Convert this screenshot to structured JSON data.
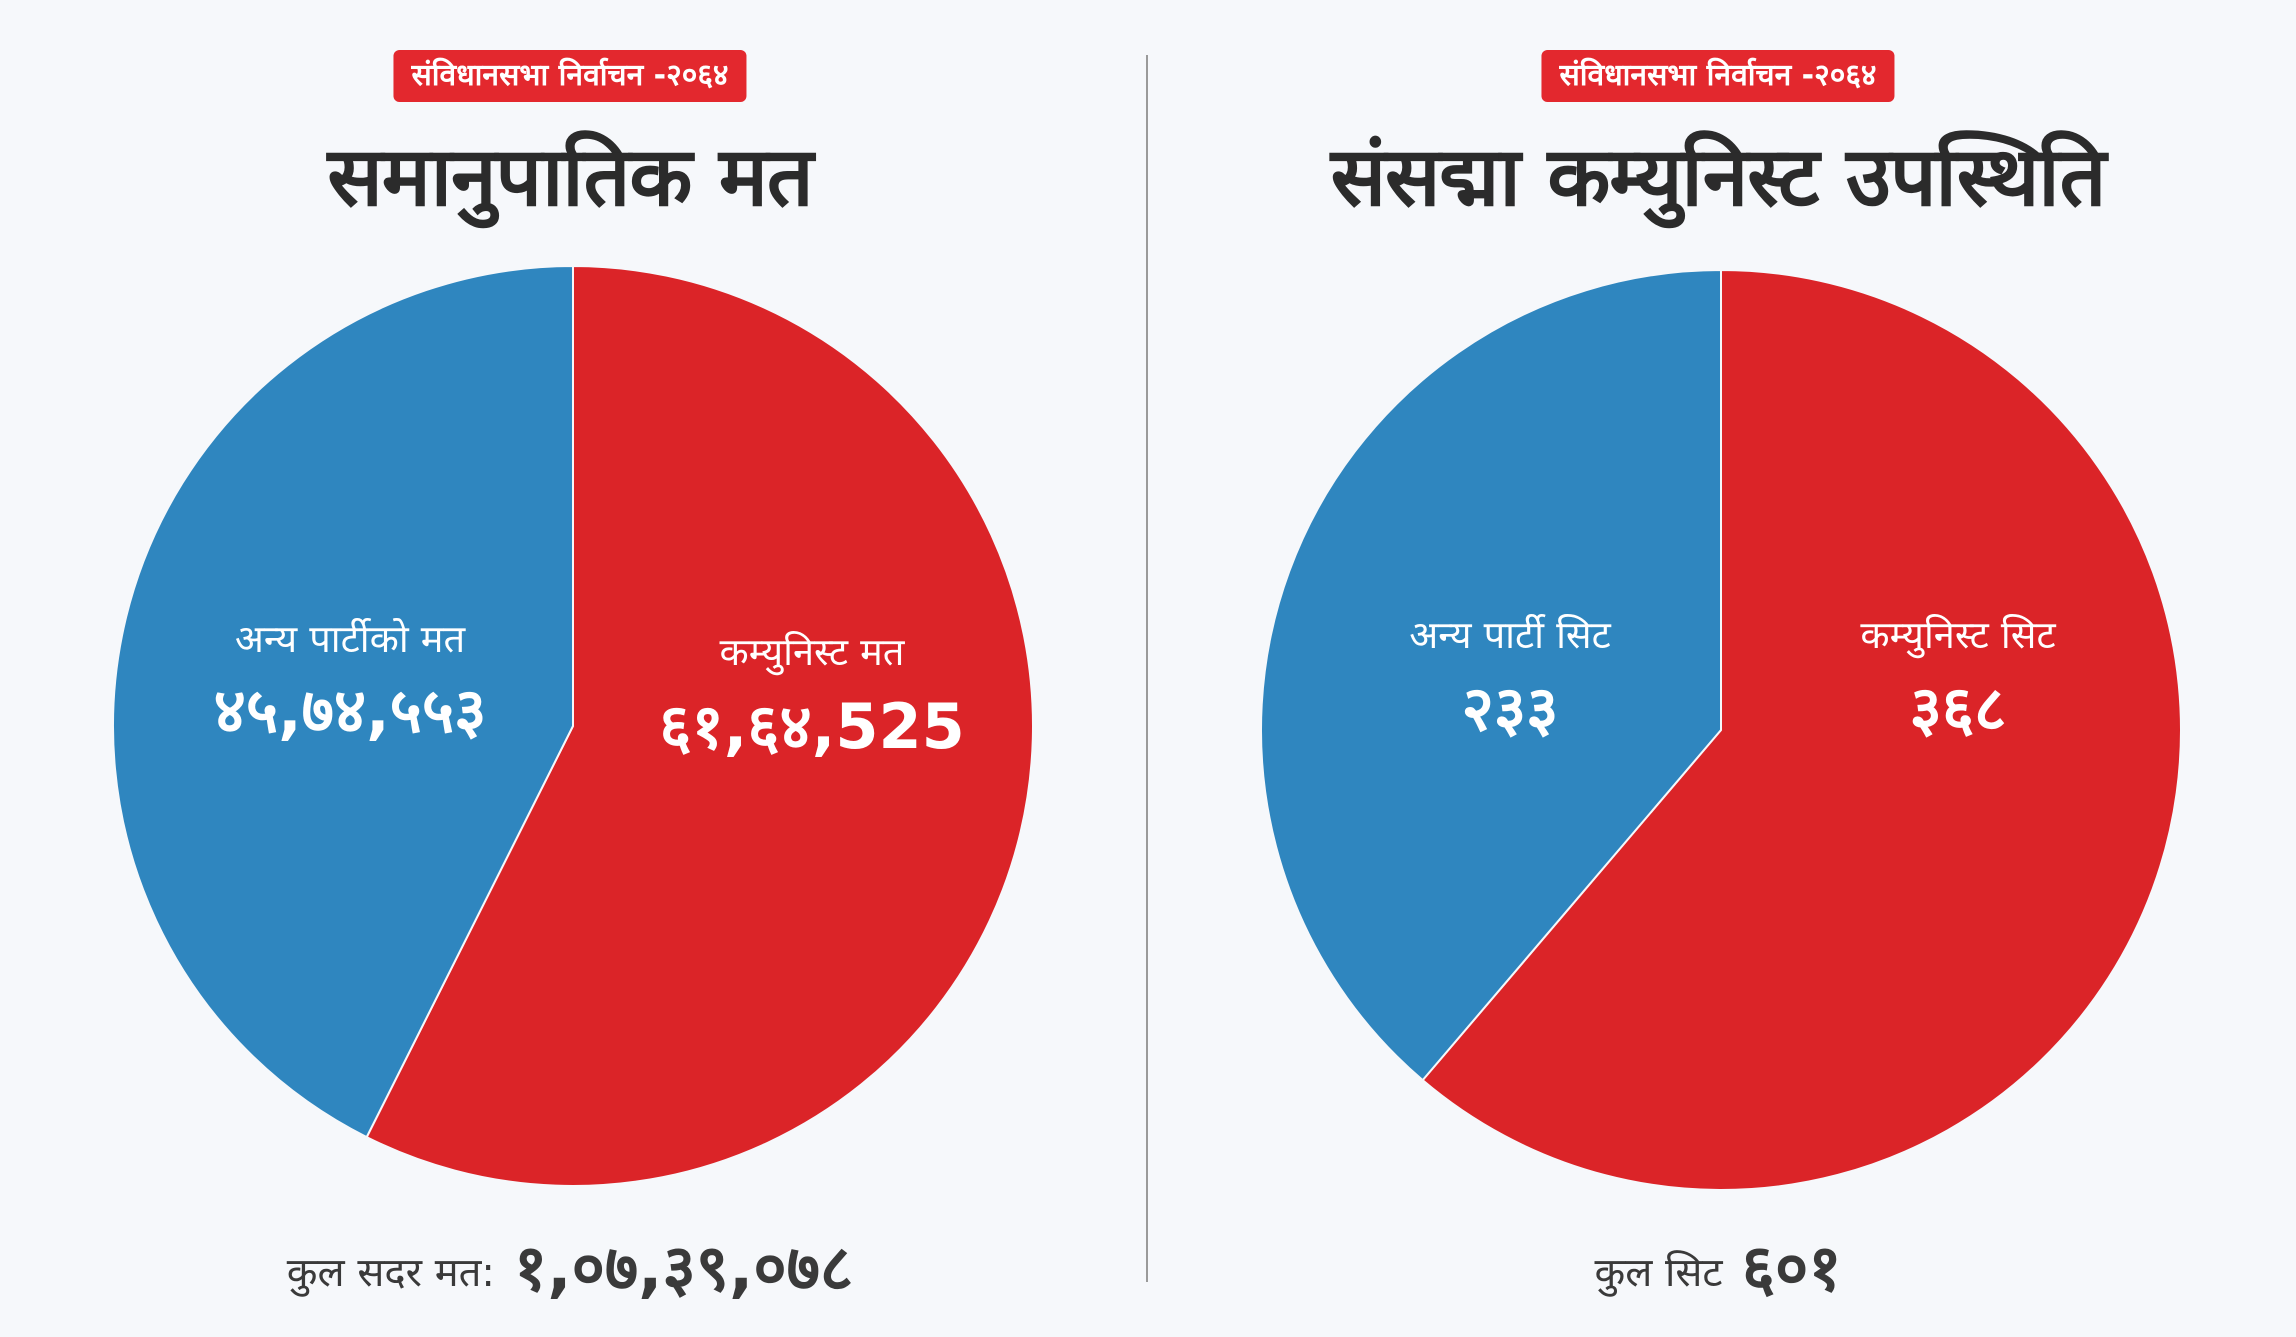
{
  "colors": {
    "communist": "#db2428",
    "other": "#2f86bf",
    "badge": "#e3282e",
    "title": "#2b2b2b"
  },
  "left": {
    "badge": "संविधानसभा निर्वाचन -२०६४",
    "title": "समानुपातिक मत",
    "other_label": "अन्य पार्टीको मत",
    "other_value": "४५,७४,५५३",
    "communist_label": "कम्युनिस्ट मत",
    "communist_value": "६१,६४,525",
    "total_label": "कुल सदर मत:",
    "total_value": "१,०७,३९,०७८"
  },
  "right": {
    "badge": "संविधानसभा निर्वाचन -२०६४",
    "title": "संसद्मा कम्युनिस्ट उपस्थिति",
    "other_label": "अन्य पार्टी सिट",
    "other_value": "२३३",
    "communist_label": "कम्युनिस्ट सिट",
    "communist_value": "३६८",
    "total_label": "कुल सिट",
    "total_value": "६०१"
  },
  "chart_data": [
    {
      "type": "pie",
      "title": "समानुपातिक मत",
      "labels": [
        "कम्युनिस्ट मत",
        "अन्य पार्टीको मत"
      ],
      "values": [
        6164525,
        4574553
      ],
      "colors": [
        "#db2428",
        "#2f86bf"
      ]
    },
    {
      "type": "pie",
      "title": "संसद्मा कम्युनिस्ट उपस्थिति",
      "labels": [
        "कम्युनिस्ट सिट",
        "अन्य पार्टी सिट"
      ],
      "values": [
        368,
        233
      ],
      "colors": [
        "#db2428",
        "#2f86bf"
      ]
    }
  ]
}
